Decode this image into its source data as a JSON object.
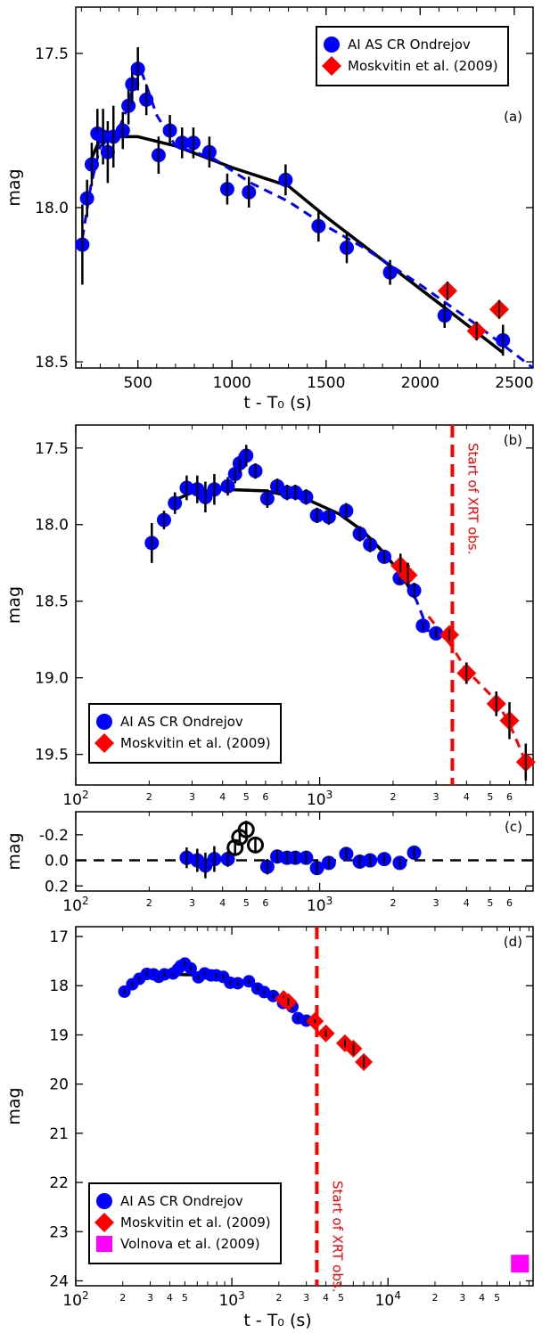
{
  "colors": {
    "ondrejov": "#0000ff",
    "moskvitin": "#ff0000",
    "volnova": "#ff00ff",
    "model": "#000000",
    "xrt": "#ff0000"
  },
  "chart_data": [
    {
      "panel": "(a)",
      "type": "scatter",
      "xscale": "linear",
      "xlim": [
        170,
        2600
      ],
      "ylim": [
        17.35,
        18.52
      ],
      "yreversed": true,
      "xticks": [
        500,
        1000,
        1500,
        2000,
        2500
      ],
      "yticks": [
        17.5,
        18.0,
        18.5
      ],
      "xlabel": "t - T₀    (s)",
      "ylabel": "mag",
      "legend": {
        "position": "top-right",
        "entries": [
          "AI AS CR Ondrejov",
          "Moskvitin et al. (2009)"
        ]
      },
      "series": [
        {
          "name": "AI AS CR Ondrejov",
          "marker": "circle",
          "color": "#0000ff",
          "x": [
            205,
            230,
            255,
            285,
            315,
            340,
            370,
            420,
            450,
            470,
            500,
            545,
            610,
            670,
            735,
            795,
            880,
            975,
            1090,
            1285,
            1460,
            1610,
            1840,
            2130,
            2440
          ],
          "y": [
            18.12,
            17.97,
            17.86,
            17.76,
            17.77,
            17.82,
            17.77,
            17.75,
            17.67,
            17.6,
            17.55,
            17.65,
            17.83,
            17.75,
            17.79,
            17.79,
            17.82,
            17.94,
            17.95,
            17.91,
            18.06,
            18.13,
            18.21,
            18.35,
            18.43
          ],
          "yerr": [
            0.13,
            0.06,
            0.07,
            0.08,
            0.09,
            0.1,
            0.1,
            0.06,
            0.06,
            0.06,
            0.07,
            0.05,
            0.06,
            0.05,
            0.05,
            0.05,
            0.05,
            0.05,
            0.05,
            0.05,
            0.05,
            0.05,
            0.04,
            0.04,
            0.05
          ]
        },
        {
          "name": "Moskvitin et al. (2009)",
          "marker": "diamond",
          "color": "#ff0000",
          "x": [
            2145,
            2300,
            2420
          ],
          "y": [
            18.27,
            18.4,
            18.33
          ],
          "yerr": [
            0.03,
            0.03,
            0.03
          ]
        },
        {
          "name": "fit (solid)",
          "style": "solid",
          "color": "#000000",
          "x": [
            255,
            290,
            350,
            500,
            700,
            1000,
            1300,
            1500,
            1800,
            2100,
            2440
          ],
          "y": [
            17.84,
            17.79,
            17.77,
            17.77,
            17.8,
            17.87,
            17.93,
            18.03,
            18.17,
            18.31,
            18.47
          ]
        },
        {
          "name": "model (dashed)",
          "style": "dashed",
          "color": "#0000ff",
          "x": [
            205,
            250,
            300,
            380,
            430,
            480,
            520,
            600,
            700,
            900,
            1100,
            1300,
            1500,
            1700,
            2000,
            2300,
            2600
          ],
          "y": [
            18.1,
            17.93,
            17.8,
            17.77,
            17.7,
            17.6,
            17.56,
            17.7,
            17.8,
            17.84,
            17.92,
            17.98,
            18.06,
            18.13,
            18.25,
            18.38,
            18.52
          ]
        }
      ]
    },
    {
      "panel": "(b)",
      "type": "scatter",
      "xscale": "log",
      "xlim": [
        100,
        7500
      ],
      "ylim": [
        17.35,
        19.7
      ],
      "yreversed": true,
      "xticks": [
        100,
        1000
      ],
      "xtick_labels": [
        "10^2",
        "10^3"
      ],
      "minor_ticks": [
        2,
        3,
        4,
        5,
        6,
        20,
        30,
        40,
        50,
        60
      ],
      "yticks": [
        17.5,
        18.0,
        18.5,
        19.0,
        19.5
      ],
      "ylabel": "mag",
      "vline": {
        "x": 3500,
        "label": "Start of XRT obs."
      },
      "legend": {
        "position": "bottom-left",
        "entries": [
          "AI AS CR Ondrejov",
          "Moskvitin et al. (2009)"
        ]
      },
      "series": [
        {
          "name": "AI AS CR Ondrejov",
          "marker": "circle",
          "color": "#0000ff",
          "x": [
            205,
            230,
            255,
            285,
            315,
            340,
            370,
            420,
            450,
            470,
            500,
            545,
            610,
            670,
            735,
            795,
            880,
            975,
            1090,
            1285,
            1460,
            1610,
            1840,
            2130,
            2440,
            2650,
            3000
          ],
          "y": [
            18.12,
            17.97,
            17.86,
            17.76,
            17.77,
            17.82,
            17.77,
            17.75,
            17.67,
            17.6,
            17.55,
            17.65,
            17.83,
            17.75,
            17.79,
            17.79,
            17.82,
            17.94,
            17.95,
            17.91,
            18.06,
            18.13,
            18.21,
            18.35,
            18.43,
            18.66,
            18.71
          ],
          "yerr": [
            0.13,
            0.06,
            0.07,
            0.08,
            0.09,
            0.1,
            0.1,
            0.06,
            0.06,
            0.06,
            0.07,
            0.05,
            0.06,
            0.05,
            0.05,
            0.05,
            0.05,
            0.05,
            0.05,
            0.05,
            0.05,
            0.05,
            0.04,
            0.04,
            0.05,
            0.03,
            0.03
          ]
        },
        {
          "name": "Moskvitin et al. (2009)",
          "marker": "diamond",
          "color": "#ff0000",
          "x": [
            2145,
            2300,
            3400,
            4000,
            5300,
            6000,
            7000
          ],
          "y": [
            18.27,
            18.33,
            18.72,
            18.97,
            19.17,
            19.28,
            19.55
          ],
          "yerr": [
            0.08,
            0.08,
            0.04,
            0.07,
            0.08,
            0.12,
            0.12
          ]
        },
        {
          "name": "fit (solid)",
          "style": "solid",
          "color": "#000000",
          "x": [
            255,
            300,
            400,
            600,
            900,
            1200,
            1500,
            1800,
            2100,
            2440
          ],
          "y": [
            17.84,
            17.79,
            17.77,
            17.78,
            17.84,
            17.93,
            18.04,
            18.17,
            18.3,
            18.46
          ]
        },
        {
          "name": "model (dashed blue)",
          "style": "dashed",
          "color": "#0000ff",
          "x": [
            2300,
            2500,
            2800
          ],
          "y": [
            18.38,
            18.5,
            18.7
          ]
        },
        {
          "name": "model (dashed red)",
          "style": "dashed",
          "color": "#ff0000",
          "x": [
            2800,
            3500,
            4000,
            5300,
            6000,
            7000
          ],
          "y": [
            18.6,
            18.8,
            18.95,
            19.15,
            19.3,
            19.55
          ]
        }
      ]
    },
    {
      "panel": "(c)",
      "type": "scatter",
      "xscale": "log",
      "xlim": [
        100,
        7500
      ],
      "ylim": [
        -0.38,
        0.24
      ],
      "yreversed": true,
      "yticks": [
        -0.2,
        0.0,
        0.2
      ],
      "ytick_labels": [
        "-0.2",
        "0.0",
        "0.2"
      ],
      "xticks": [
        100,
        1000
      ],
      "xtick_labels": [
        "10^2",
        "10^3"
      ],
      "minor_ticks": [
        2,
        3,
        4,
        5,
        6,
        20,
        30,
        40,
        50,
        60
      ],
      "ylabel": "mag",
      "hline": 0,
      "series": [
        {
          "name": "residuals (filled)",
          "marker": "circle",
          "color": "#0000ff",
          "x": [
            285,
            315,
            340,
            370,
            420,
            610,
            670,
            735,
            795,
            880,
            975,
            1090,
            1285,
            1460,
            1610,
            1840,
            2130,
            2440
          ],
          "y": [
            -0.02,
            0.0,
            0.04,
            -0.01,
            -0.01,
            0.05,
            -0.03,
            -0.02,
            -0.02,
            -0.02,
            0.06,
            0.02,
            -0.05,
            0.01,
            0.0,
            -0.01,
            0.02,
            -0.06
          ],
          "yerr": [
            0.08,
            0.09,
            0.1,
            0.1,
            0.06,
            0.06,
            0.05,
            0.05,
            0.05,
            0.05,
            0.05,
            0.05,
            0.05,
            0.05,
            0.05,
            0.04,
            0.04,
            0.05
          ]
        },
        {
          "name": "flare residuals (open)",
          "marker": "open-circle",
          "color": "#000000",
          "x": [
            450,
            470,
            500,
            545
          ],
          "y": [
            -0.1,
            -0.18,
            -0.24,
            -0.12
          ],
          "yerr": [
            0.06,
            0.06,
            0.07,
            0.05
          ]
        }
      ]
    },
    {
      "panel": "(d)",
      "type": "scatter",
      "xscale": "log",
      "xlim": [
        100,
        85000
      ],
      "ylim": [
        16.8,
        24.1
      ],
      "yreversed": true,
      "xticks": [
        100,
        1000,
        10000
      ],
      "xtick_labels": [
        "10^2",
        "10^3",
        "10^4"
      ],
      "minor_ticks": [
        2,
        3,
        4,
        5,
        20,
        30,
        40,
        50,
        200,
        300,
        400,
        500,
        2000,
        3000,
        4000,
        5000
      ],
      "yticks": [
        17,
        18,
        19,
        20,
        21,
        22,
        23,
        24
      ],
      "xlabel": "t - T₀    (s)",
      "ylabel": "mag",
      "vline": {
        "x": 3500,
        "label": "Start of XRT obs."
      },
      "legend": {
        "position": "bottom-left",
        "entries": [
          "AI AS CR Ondrejov",
          "Moskvitin et al. (2009)",
          "Volnova et al. (2009)"
        ]
      },
      "series": [
        {
          "name": "AI AS CR Ondrejov",
          "marker": "circle",
          "color": "#0000ff",
          "x": [
            205,
            230,
            255,
            285,
            315,
            340,
            370,
            420,
            450,
            470,
            500,
            545,
            610,
            670,
            735,
            795,
            880,
            975,
            1090,
            1285,
            1460,
            1610,
            1840,
            2130,
            2440,
            2650,
            3000
          ],
          "y": [
            18.12,
            17.97,
            17.86,
            17.76,
            17.77,
            17.82,
            17.77,
            17.75,
            17.67,
            17.6,
            17.55,
            17.65,
            17.83,
            17.75,
            17.79,
            17.79,
            17.82,
            17.94,
            17.95,
            17.91,
            18.06,
            18.13,
            18.21,
            18.35,
            18.43,
            18.66,
            18.71
          ],
          "yerr": [
            0.05,
            0.05,
            0.05,
            0.05,
            0.05,
            0.05,
            0.05,
            0.05,
            0.05,
            0.05,
            0.05,
            0.05,
            0.05,
            0.05,
            0.05,
            0.05,
            0.05,
            0.05,
            0.05,
            0.05,
            0.05,
            0.05,
            0.05,
            0.05,
            0.05,
            0.05,
            0.05
          ]
        },
        {
          "name": "Moskvitin et al. (2009)",
          "marker": "diamond",
          "color": "#ff0000",
          "x": [
            2145,
            2300,
            3400,
            4000,
            5300,
            6000,
            7000
          ],
          "y": [
            18.27,
            18.33,
            18.72,
            18.97,
            19.17,
            19.28,
            19.55
          ],
          "yerr": [
            0.08,
            0.08,
            0.04,
            0.07,
            0.08,
            0.12,
            0.12
          ]
        },
        {
          "name": "Volnova et al. (2009)",
          "marker": "square",
          "color": "#ff00ff",
          "x": [
            70000
          ],
          "y": [
            23.65
          ],
          "yerr": [
            0
          ]
        },
        {
          "name": "fit (solid)",
          "style": "solid",
          "color": "#000000",
          "x": [
            255,
            300,
            400,
            600,
            900,
            1200,
            1500,
            1800,
            2100,
            2440
          ],
          "y": [
            17.84,
            17.79,
            17.77,
            17.78,
            17.84,
            17.93,
            18.04,
            18.17,
            18.3,
            18.46
          ]
        }
      ]
    }
  ]
}
